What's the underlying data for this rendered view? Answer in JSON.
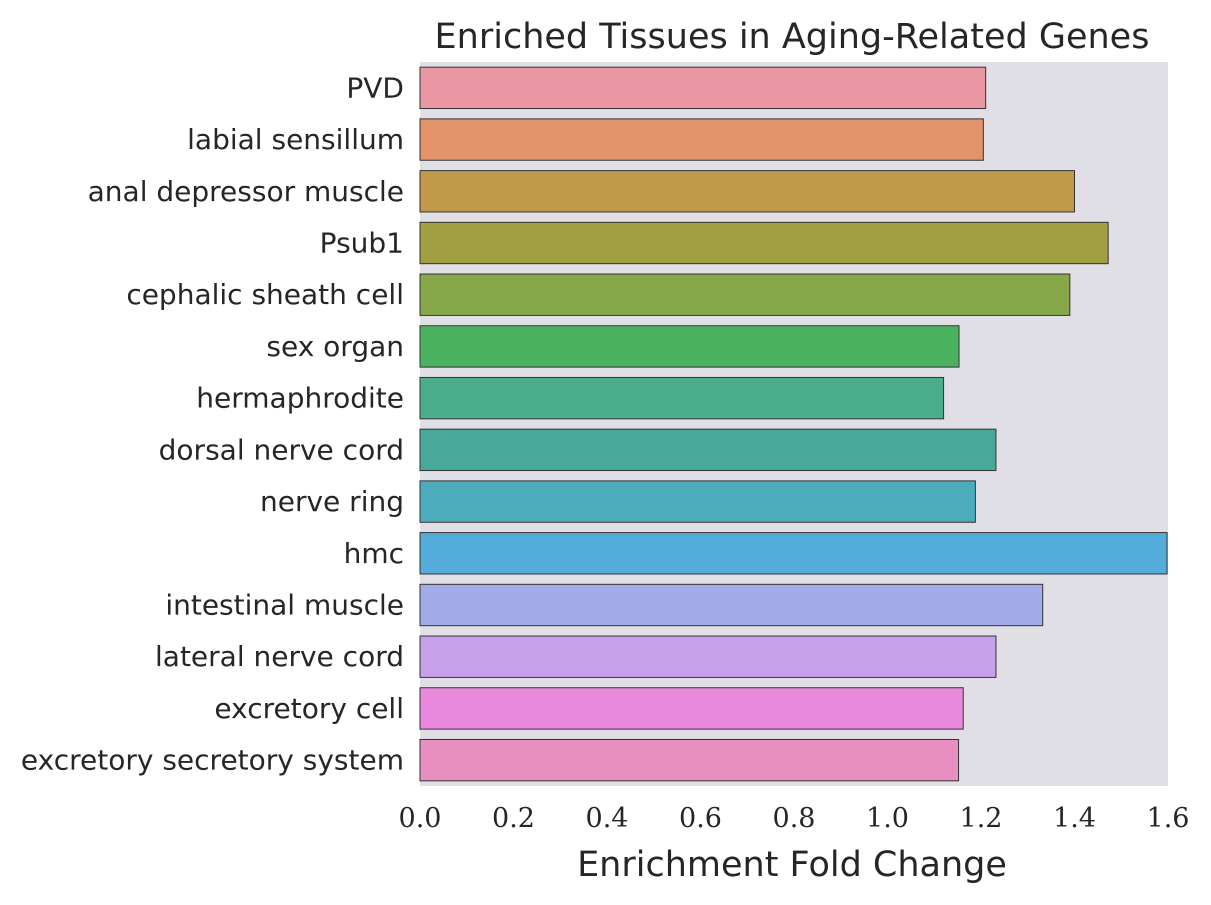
{
  "chart_data": {
    "type": "bar",
    "orientation": "horizontal",
    "title": "Enriched Tissues in Aging-Related Genes",
    "xlabel": "Enrichment Fold Change",
    "ylabel": "",
    "xlim": [
      0,
      1.6
    ],
    "xticks": [
      "0.0",
      "0.2",
      "0.4",
      "0.6",
      "0.8",
      "1.0",
      "1.2",
      "1.4",
      "1.6"
    ],
    "grid": false,
    "plot_background": "#E0DFE5",
    "bar_edge_color": "#333333",
    "categories": [
      "PVD",
      "labial sensillum",
      "anal depressor muscle",
      "Psub1",
      "cephalic sheath cell",
      "sex organ",
      "hermaphrodite",
      "dorsal nerve cord",
      "nerve ring",
      "hmc",
      "intestinal muscle",
      "lateral nerve cord",
      "excretory cell",
      "excretory secretory system"
    ],
    "values": [
      1.21,
      1.205,
      1.4,
      1.472,
      1.39,
      1.153,
      1.12,
      1.232,
      1.188,
      1.598,
      1.332,
      1.232,
      1.162,
      1.152
    ],
    "colors": [
      "#EA96A3",
      "#E2936A",
      "#C09A4A",
      "#A29F43",
      "#87A848",
      "#4AB15F",
      "#4AAE8C",
      "#48A99B",
      "#4CACBC",
      "#54ACDA",
      "#A1ACE9",
      "#C6A0E8",
      "#E98ADF",
      "#E98EC1"
    ]
  }
}
